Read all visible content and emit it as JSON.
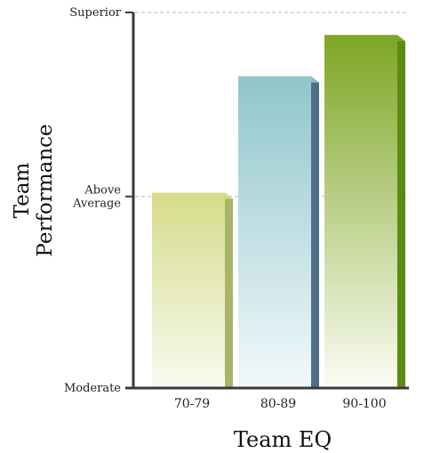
{
  "chart_data": {
    "type": "bar",
    "xlabel": "Team EQ",
    "ylabel": [
      "Team",
      "Performance"
    ],
    "categories": [
      "70-79",
      "80-89",
      "90-100"
    ],
    "values": [
      0.52,
      0.83,
      0.94
    ],
    "ylim": [
      0,
      1
    ],
    "yticks": [
      {
        "value": 0,
        "label": [
          "Moderate"
        ],
        "grid": false
      },
      {
        "value": 0.51,
        "label": [
          "Above",
          "Average"
        ],
        "grid": true
      },
      {
        "value": 1,
        "label": [
          "Superior"
        ],
        "grid": true
      }
    ],
    "grid": "dashed horizontal at tick levels",
    "colors": [
      {
        "top": "#d6dc8a",
        "bottom": "#f8faf0",
        "side": "#a8b46a"
      },
      {
        "top": "#8fc6cb",
        "bottom": "#f2f8fb",
        "side": "#4f6f88"
      },
      {
        "top": "#7ea624",
        "bottom": "#fbfcf4",
        "side": "#5e8a14"
      }
    ]
  }
}
